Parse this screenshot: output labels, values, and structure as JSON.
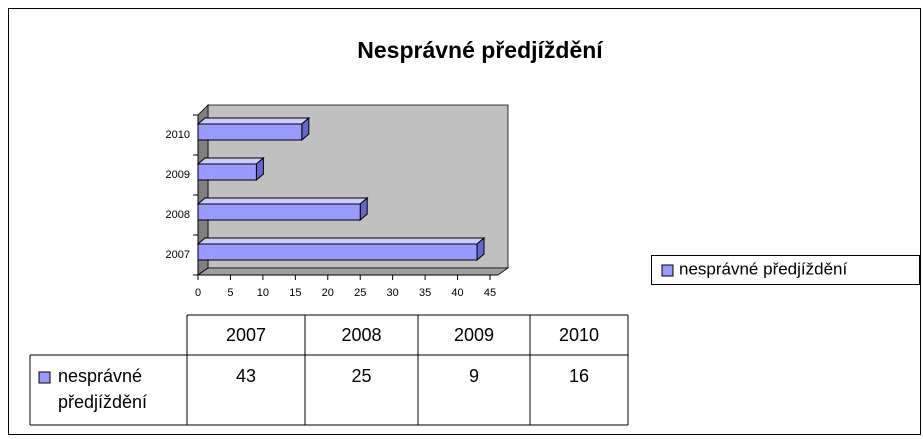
{
  "chart_data": {
    "type": "bar",
    "orientation": "horizontal",
    "title": "Nesprávné předjíždění",
    "categories": [
      "2007",
      "2008",
      "2009",
      "2010"
    ],
    "series": [
      {
        "name": "nesprávné předjíždění",
        "color": "#9999ff",
        "values": [
          43,
          25,
          9,
          16
        ]
      }
    ],
    "xlim": [
      0,
      45
    ],
    "xticks": [
      0,
      5,
      10,
      15,
      20,
      25,
      30,
      35,
      40,
      45
    ],
    "legend": "right",
    "data_table": true
  }
}
